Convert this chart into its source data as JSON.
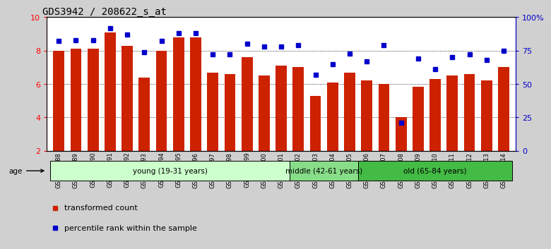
{
  "title": "GDS3942 / 208622_s_at",
  "samples": [
    "GSM812988",
    "GSM812989",
    "GSM812990",
    "GSM812991",
    "GSM812992",
    "GSM812993",
    "GSM812994",
    "GSM812995",
    "GSM812996",
    "GSM812997",
    "GSM812998",
    "GSM812999",
    "GSM813000",
    "GSM813001",
    "GSM813002",
    "GSM813003",
    "GSM813004",
    "GSM813005",
    "GSM813006",
    "GSM813007",
    "GSM813008",
    "GSM813009",
    "GSM813010",
    "GSM813011",
    "GSM813012",
    "GSM813013",
    "GSM813014"
  ],
  "bar_values": [
    8.0,
    8.1,
    8.1,
    9.1,
    8.3,
    6.4,
    8.0,
    8.8,
    8.8,
    6.7,
    6.6,
    7.6,
    6.5,
    7.1,
    7.0,
    5.3,
    6.1,
    6.7,
    6.2,
    6.0,
    4.0,
    5.85,
    6.3,
    6.5,
    6.6,
    6.2,
    7.0
  ],
  "percentile_values": [
    82,
    83,
    83,
    92,
    87,
    74,
    82,
    88,
    88,
    72,
    72,
    80,
    78,
    78,
    79,
    57,
    65,
    73,
    67,
    79,
    21,
    69,
    61,
    70,
    72,
    68,
    75
  ],
  "bar_color": "#cc2200",
  "percentile_color": "#0000cc",
  "ylim_left": [
    2,
    10
  ],
  "ylim_right": [
    0,
    100
  ],
  "yticks_left": [
    2,
    4,
    6,
    8,
    10
  ],
  "yticks_right": [
    0,
    25,
    50,
    75,
    100
  ],
  "ytick_labels_right": [
    "0",
    "25",
    "50",
    "75",
    "100%"
  ],
  "groups": [
    {
      "label": "young (19-31 years)",
      "start": 0,
      "end": 14,
      "color": "#ccffcc"
    },
    {
      "label": "middle (42-61 years)",
      "start": 14,
      "end": 18,
      "color": "#88dd88"
    },
    {
      "label": "old (65-84 years)",
      "start": 18,
      "end": 27,
      "color": "#44bb44"
    }
  ],
  "legend_items": [
    {
      "label": "transformed count",
      "color": "#cc2200"
    },
    {
      "label": "percentile rank within the sample",
      "color": "#0000cc"
    }
  ],
  "title_fontsize": 10,
  "bg_color": "#d8d8d8"
}
